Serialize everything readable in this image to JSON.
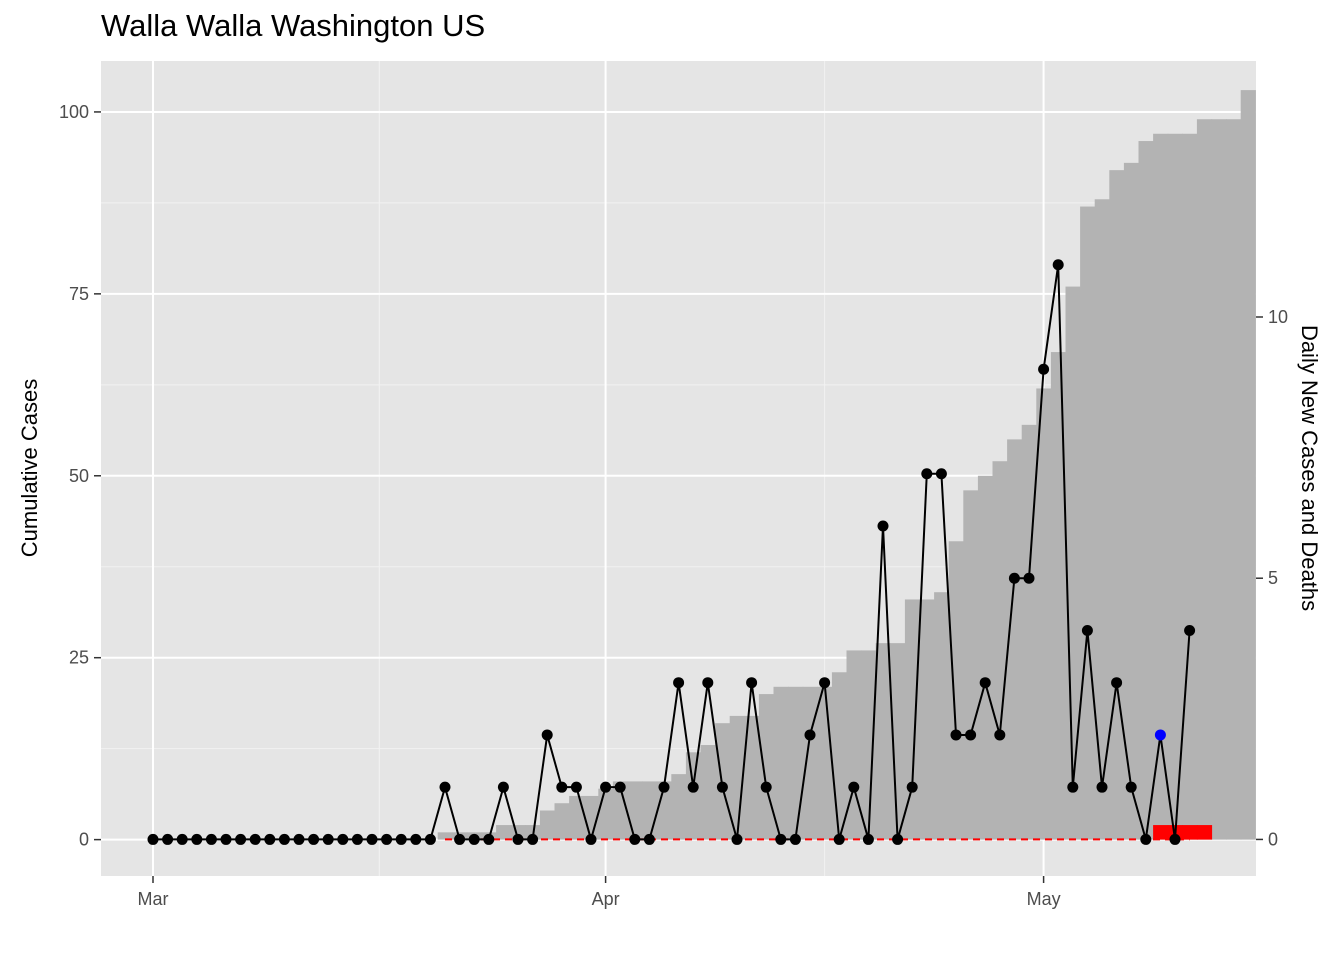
{
  "chart_data": {
    "type": "line",
    "title": "Walla Walla Washington US",
    "ylabel": "Cumulative Cases",
    "y2label": "Daily New Cases and Deaths",
    "xlabel": "",
    "x_start": "2020-03-01",
    "x_ticks": [
      {
        "label": "Mar",
        "date": "2020-03-01"
      },
      {
        "label": "Apr",
        "date": "2020-04-01"
      },
      {
        "label": "May",
        "date": "2020-05-01"
      }
    ],
    "ylim": [
      -5,
      107
    ],
    "y_ticks": [
      0,
      25,
      50,
      75,
      100
    ],
    "y2lim": [
      -0.7,
      14.9
    ],
    "y2_ticks": [
      0,
      5,
      10
    ],
    "grid": true,
    "series": [
      {
        "name": "Cumulative Cases",
        "style": "area",
        "color": "#b3b3b3",
        "values": [
          0,
          0,
          0,
          0,
          0,
          0,
          0,
          0,
          0,
          0,
          0,
          0,
          0,
          0,
          0,
          0,
          0,
          0,
          0,
          0,
          1,
          1,
          1,
          1,
          2,
          2,
          2,
          4,
          5,
          6,
          6,
          7,
          8,
          8,
          8,
          8,
          9,
          12,
          13,
          16,
          17,
          17,
          20,
          21,
          21,
          21,
          21,
          23,
          26,
          26,
          27,
          27,
          33,
          33,
          34,
          41,
          48,
          50,
          52,
          55,
          57,
          62,
          67,
          76,
          87,
          88,
          92,
          93,
          96,
          97,
          97,
          97,
          99,
          99,
          99,
          103
        ]
      },
      {
        "name": "Daily New Cases",
        "style": "line-points",
        "color": "#000000",
        "values": [
          0,
          0,
          0,
          0,
          0,
          0,
          0,
          0,
          0,
          0,
          0,
          0,
          0,
          0,
          0,
          0,
          0,
          0,
          0,
          0,
          1,
          0,
          0,
          0,
          1,
          0,
          0,
          2,
          1,
          1,
          0,
          1,
          1,
          0,
          0,
          1,
          3,
          1,
          3,
          1,
          0,
          3,
          1,
          0,
          0,
          2,
          3,
          0,
          1,
          0,
          6,
          0,
          1,
          7,
          7,
          2,
          2,
          3,
          2,
          5,
          5,
          9,
          11,
          1,
          4,
          1,
          3,
          1,
          0,
          2,
          0,
          4
        ],
        "highlight": {
          "index": 69,
          "color": "#0000ff"
        }
      },
      {
        "name": "Daily Deaths",
        "style": "dashed-line",
        "color": "#ff0000",
        "values": [
          0,
          0,
          0,
          0,
          0,
          0,
          0,
          0,
          0,
          0,
          0,
          0,
          0,
          0,
          0,
          0,
          0,
          0,
          0,
          0,
          0,
          0,
          0,
          0,
          0,
          0,
          0,
          0,
          0,
          0,
          0,
          0,
          0,
          0,
          0,
          0,
          0,
          0,
          0,
          0,
          0,
          0,
          0,
          0,
          0,
          0,
          0,
          0,
          0,
          0,
          0,
          0,
          0,
          0,
          0,
          0,
          0,
          0,
          0,
          0,
          0,
          0,
          0,
          0,
          0,
          0,
          0,
          0,
          0,
          0,
          0,
          0
        ]
      },
      {
        "name": "Cumulative Deaths",
        "style": "area",
        "color": "#ff0000",
        "start_index": 69,
        "values": [
          2,
          2,
          2,
          2
        ]
      }
    ]
  }
}
